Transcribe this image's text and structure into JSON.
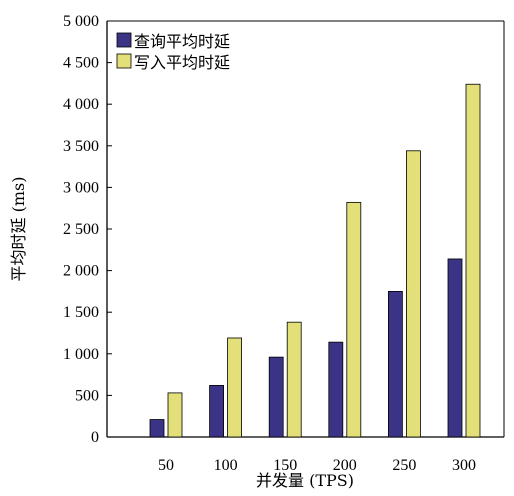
{
  "chart_data": {
    "type": "bar",
    "xlabel": "并发量 (TPS)",
    "ylabel": "平均时延 (ms)",
    "categories": [
      "50",
      "100",
      "150",
      "200",
      "250",
      "300"
    ],
    "ylim": [
      0,
      5000
    ],
    "yticks": [
      0,
      500,
      1000,
      1500,
      2000,
      2500,
      3000,
      3500,
      4000,
      4500,
      5000
    ],
    "ytick_labels": [
      "0",
      "500",
      "1 000",
      "1 500",
      "2 000",
      "2 500",
      "3 000",
      "3 500",
      "4 000",
      "4 500",
      "5 000"
    ],
    "legend_position": "top-left",
    "series": [
      {
        "name": "查询平均时延",
        "color": "#3b3486",
        "values": [
          210,
          620,
          960,
          1140,
          1750,
          2140
        ]
      },
      {
        "name": "写入平均时延",
        "color": "#e3e07a",
        "values": [
          530,
          1190,
          1380,
          2820,
          3440,
          4240
        ]
      }
    ]
  }
}
